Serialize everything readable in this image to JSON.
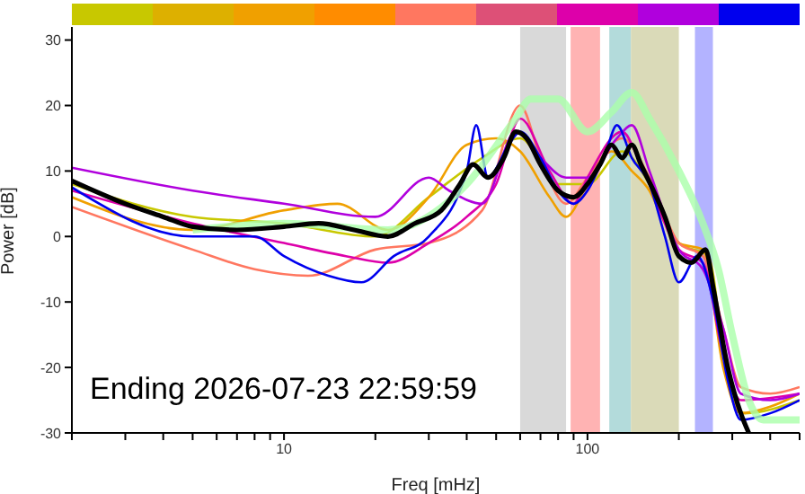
{
  "chart_data": {
    "type": "line",
    "xlabel": "Freq [mHz]",
    "ylabel": "Power [dB]",
    "log": "x",
    "xlim": [
      2,
      500
    ],
    "ylim": [
      -30,
      32
    ],
    "xticks": [
      {
        "value": 2,
        "label": null
      },
      {
        "value": 3,
        "label": null
      },
      {
        "value": 4,
        "label": null
      },
      {
        "value": 5,
        "label": null
      },
      {
        "value": 6,
        "label": null
      },
      {
        "value": 7,
        "label": null
      },
      {
        "value": 8,
        "label": null
      },
      {
        "value": 9,
        "label": null
      },
      10,
      {
        "value": 20,
        "label": null
      },
      {
        "value": 30,
        "label": null
      },
      {
        "value": 40,
        "label": null
      },
      {
        "value": 50,
        "label": null
      },
      {
        "value": 60,
        "label": null
      },
      {
        "value": 70,
        "label": null
      },
      {
        "value": 80,
        "label": null
      },
      {
        "value": 90,
        "label": null
      },
      100,
      {
        "value": 200,
        "label": null
      },
      {
        "value": 300,
        "label": null
      },
      {
        "value": 400,
        "label": null
      },
      {
        "value": 500,
        "label": null
      }
    ],
    "yticks": [
      -30,
      -20,
      -10,
      0,
      10,
      20,
      30
    ],
    "grid": false,
    "legend": false,
    "marker": "none",
    "line_style": "solid",
    "annotations": [
      "Ending 2026-07-23 22:59:59"
    ],
    "bands": [
      {
        "axis": "x",
        "from": 60,
        "to": 85,
        "color": "#d9d9d9"
      },
      {
        "axis": "x",
        "from": 88,
        "to": 110,
        "color": "#ffb3b3"
      },
      {
        "axis": "x",
        "from": 118,
        "to": 139,
        "color": "#b3dbdb"
      },
      {
        "axis": "x",
        "from": 139,
        "to": 200,
        "color": "#dadab8"
      },
      {
        "axis": "x",
        "from": 226,
        "to": 259,
        "color": "#b3b3ff"
      }
    ],
    "series": [
      {
        "color": "#c8c800",
        "x": [
          2,
          5,
          10,
          20,
          30,
          45,
          60,
          80,
          100,
          130,
          160,
          200,
          250,
          290,
          330,
          500
        ],
        "values": [
          8,
          3,
          2,
          0,
          6,
          12,
          15,
          8,
          8,
          13,
          8,
          -1,
          -3,
          -22,
          -27,
          -25
        ]
      },
      {
        "color": "#f0a000",
        "x": [
          2,
          5,
          10,
          15,
          22,
          30,
          40,
          50,
          60,
          75,
          85,
          100,
          120,
          140,
          160,
          180,
          200,
          240,
          280,
          320,
          400,
          500
        ],
        "values": [
          6,
          1,
          4,
          5,
          1,
          6,
          14,
          15,
          13,
          6,
          3,
          8,
          13,
          10,
          7,
          2,
          -1,
          -2,
          -20,
          -27,
          -26,
          -24
        ]
      },
      {
        "color": "#ff7760",
        "x": [
          2,
          5,
          8,
          12,
          20,
          30,
          45,
          60,
          70,
          85,
          100,
          130,
          160,
          200,
          240,
          280,
          320,
          400,
          500
        ],
        "values": [
          4.5,
          -2,
          -5,
          -6,
          -2,
          -1,
          4,
          20,
          12,
          5,
          9,
          15,
          9,
          -1,
          -3,
          -14,
          -23,
          -24,
          -23
        ]
      },
      {
        "color": "#dd00aa",
        "x": [
          2,
          5,
          10,
          16,
          22,
          30,
          40,
          50,
          60,
          75,
          90,
          100,
          130,
          150,
          200,
          240,
          280,
          320,
          500
        ],
        "values": [
          7,
          2,
          -1,
          -3,
          -4,
          -1,
          3,
          8,
          18,
          10,
          5,
          9,
          16,
          11,
          -2,
          -4,
          -18,
          -25,
          -24
        ]
      },
      {
        "color": "#b000dd",
        "x": [
          2,
          5,
          10,
          20,
          30,
          35,
          45,
          58,
          70,
          85,
          100,
          125,
          140,
          160,
          200,
          240,
          280,
          320,
          400,
          500
        ],
        "values": [
          10.5,
          7,
          5,
          3,
          9,
          7,
          5,
          16,
          12,
          9,
          9,
          15,
          17,
          10,
          -2,
          -5,
          -14,
          -24,
          -25,
          -24
        ]
      },
      {
        "color": "#0000ee",
        "x": [
          2,
          5,
          8,
          10,
          14,
          18,
          23,
          30,
          40,
          43,
          47,
          55,
          60,
          70,
          80,
          90,
          100,
          115,
          125,
          140,
          160,
          180,
          200,
          230,
          260,
          290,
          320,
          400,
          500
        ],
        "values": [
          7.5,
          0,
          0,
          -3,
          -6,
          -7,
          -3,
          0,
          10,
          17,
          9,
          14,
          16,
          12,
          7,
          5,
          7,
          13,
          17,
          12,
          8,
          0,
          -7,
          -3,
          -10,
          -22,
          -28,
          -27,
          -25
        ]
      },
      {
        "type": "line",
        "color": "#aaffaa",
        "x": [
          5,
          10,
          22,
          40,
          58,
          65,
          80,
          100,
          120,
          140,
          160,
          200,
          240,
          270,
          300,
          340,
          380,
          500
        ],
        "values": [
          1,
          2,
          1,
          8,
          18,
          21,
          21,
          16,
          19,
          22,
          18,
          10,
          2,
          -5,
          -15,
          -25,
          -28,
          -28
        ]
      },
      {
        "color": "#000000",
        "x": [
          2,
          3,
          4,
          5,
          7,
          10,
          13,
          17,
          22,
          27,
          33,
          38,
          42,
          47,
          53,
          58,
          63,
          70,
          80,
          90,
          100,
          110,
          120,
          130,
          140,
          150,
          165,
          180,
          200,
          220,
          245,
          260,
          290,
          320,
          340
        ],
        "values": [
          8.5,
          5,
          3,
          1.5,
          1,
          1.5,
          2,
          1,
          0,
          2,
          4,
          8,
          11,
          9,
          12,
          16,
          15,
          11,
          7,
          6,
          8,
          11,
          14,
          12,
          14,
          11,
          7,
          3,
          -3,
          -4,
          -2,
          -8,
          -20,
          -27,
          -30
        ]
      }
    ]
  }
}
